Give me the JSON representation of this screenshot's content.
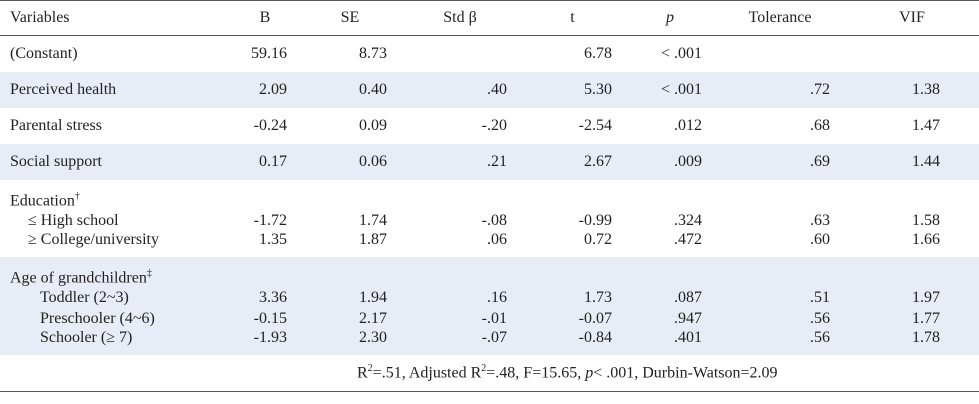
{
  "table": {
    "header": [
      "Variables",
      "B",
      "SE",
      "Std β",
      "t",
      "p",
      "Tolerance",
      "VIF"
    ],
    "groups": [
      {
        "rows": [
          [
            "(Constant)",
            "59.16",
            "8.73",
            null,
            "6.78",
            "< .001",
            null,
            null
          ]
        ]
      },
      {
        "rows": [
          [
            "Perceived health",
            "2.09",
            "0.40",
            ".40",
            "5.30",
            "< .001",
            ".72",
            "1.38"
          ]
        ]
      },
      {
        "rows": [
          [
            "Parental stress",
            "-0.24",
            "0.09",
            "-.20",
            "-2.54",
            ".012",
            ".68",
            "1.47"
          ]
        ]
      },
      {
        "rows": [
          [
            "Social support",
            "0.17",
            "0.06",
            ".21",
            "2.67",
            ".009",
            ".69",
            "1.44"
          ]
        ]
      },
      {
        "title": "Education",
        "mark": "†",
        "rows": [
          [
            "≤ High school",
            "-1.72",
            "1.74",
            "-.08",
            "-0.99",
            ".324",
            ".63",
            "1.58"
          ],
          [
            "≥ College/university",
            "1.35",
            "1.87",
            ".06",
            "0.72",
            ".472",
            ".60",
            "1.66"
          ]
        ]
      },
      {
        "title": "Age of grandchildren",
        "mark": "‡",
        "rows": [
          [
            "Toddler (2~3)",
            "3.36",
            "1.94",
            ".16",
            "1.73",
            ".087",
            ".51",
            "1.97"
          ],
          [
            "Preschooler (4~6)",
            "-0.15",
            "2.17",
            "-.01",
            "-0.07",
            ".947",
            ".56",
            "1.77"
          ],
          [
            "Schooler (≥ 7)",
            "-1.93",
            "2.30",
            "-.07",
            "-0.84",
            ".401",
            ".56",
            "1.78"
          ]
        ]
      }
    ],
    "footer": [
      "R",
      "2",
      "=.51, Adjusted R",
      "2",
      "=.48, F=15.65, ",
      "p",
      "< .001, Durbin-Watson=2.09"
    ]
  }
}
